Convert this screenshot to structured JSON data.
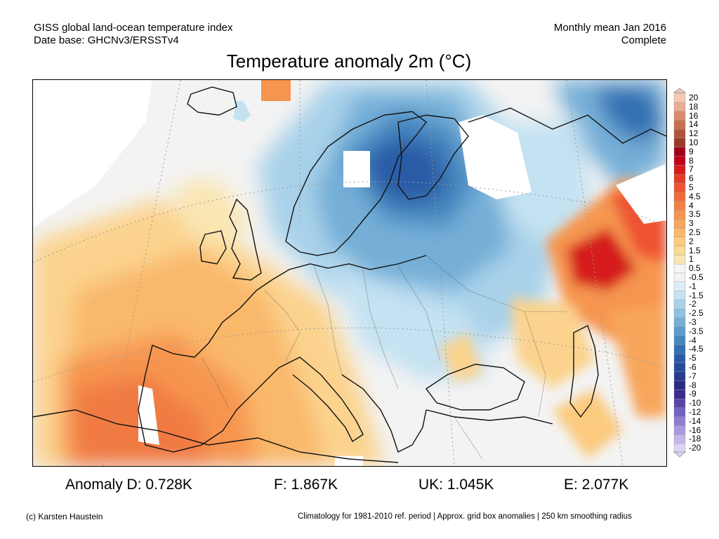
{
  "header": {
    "source_line1": "GISS global land-ocean temperature index",
    "source_line2": "Date base: GHCNv3/ERSSTv4",
    "period_line1": "Monthly mean Jan 2016",
    "period_line2": "Complete"
  },
  "title": "Temperature anomaly 2m (°C)",
  "colorbar": {
    "labels": [
      "20",
      "18",
      "16",
      "14",
      "12",
      "10",
      "9",
      "8",
      "7",
      "6",
      "5",
      "4.5",
      "4",
      "3.5",
      "3",
      "2.5",
      "2",
      "1.5",
      "1",
      "0.5",
      "-0.5",
      "-1",
      "-1.5",
      "-2",
      "-2.5",
      "-3",
      "-3.5",
      "-4",
      "-4.5",
      "-5",
      "-6",
      "-7",
      "-8",
      "-9",
      "-10",
      "-12",
      "-14",
      "-16",
      "-18",
      "-20"
    ],
    "colors": [
      "#f4c9b4",
      "#e9ad91",
      "#d98c6c",
      "#c7704f",
      "#b3543a",
      "#9c3a27",
      "#a3001c",
      "#c00018",
      "#d61a1a",
      "#e53a28",
      "#ee5232",
      "#f06a3a",
      "#f47f45",
      "#f6934f",
      "#f8a65c",
      "#f9b86b",
      "#fbca7e",
      "#fbd996",
      "#fae6b3",
      "#f5f5f5",
      "#f3f3f3",
      "#dceff8",
      "#c4e2f2",
      "#a9d2ea",
      "#8fc1e1",
      "#75afd7",
      "#5c9bcb",
      "#4586bf",
      "#3270b3",
      "#2a5ca6",
      "#264b99",
      "#253b8c",
      "#2a2c80",
      "#3a2c8a",
      "#5a45a6",
      "#7462c0",
      "#8f7dd2",
      "#aa99e0",
      "#c4b6ec",
      "#ddd4f5"
    ]
  },
  "stats": {
    "d": "Anomaly D: 0.728K",
    "f": "F: 1.867K",
    "uk": "UK: 1.045K",
    "e": "E: 2.077K"
  },
  "footer": {
    "credit": "(c) Karsten Haustein",
    "note": "Climatology for 1981-2010 ref. period | Approx. grid box anomalies | 250 km smoothing radius"
  }
}
